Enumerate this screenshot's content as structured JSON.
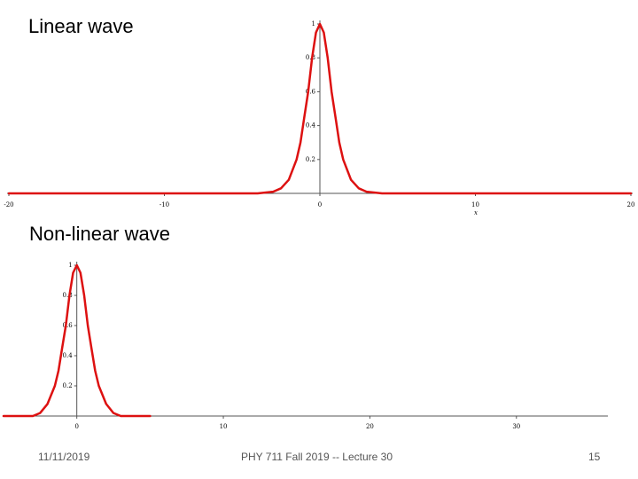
{
  "slide": {
    "footer": {
      "date": "11/11/2019",
      "course": "PHY 711 Fall 2019 -- Lecture 30",
      "page": "15"
    }
  },
  "chart_data": [
    {
      "type": "line",
      "title": "Linear wave",
      "xlabel": "x",
      "ylabel": "",
      "xlim": [
        -20,
        20
      ],
      "ylim": [
        0,
        1
      ],
      "x_ticks": [
        "-20",
        "-10",
        "0",
        "10",
        "20"
      ],
      "y_ticks": [
        "0.2",
        "0.4",
        "0.6",
        "0.8",
        "1"
      ],
      "grid": false,
      "legend": "none",
      "series_color": "#dd1111",
      "series": [
        {
          "name": "",
          "x": [
            -20,
            -4,
            -3,
            -2.5,
            -2,
            -1.5,
            -1.25,
            -1,
            -0.75,
            -0.5,
            -0.25,
            0,
            0.25,
            0.5,
            0.75,
            1,
            1.25,
            1.5,
            2,
            2.5,
            3,
            4,
            20
          ],
          "y": [
            0,
            0,
            0.01,
            0.03,
            0.08,
            0.2,
            0.3,
            0.45,
            0.6,
            0.8,
            0.95,
            1,
            0.95,
            0.8,
            0.6,
            0.45,
            0.3,
            0.2,
            0.08,
            0.03,
            0.01,
            0,
            0
          ]
        }
      ]
    },
    {
      "type": "line",
      "title": "Non-linear wave",
      "xlabel": "",
      "ylabel": "",
      "xlim": [
        -5,
        36
      ],
      "ylim": [
        0,
        1
      ],
      "x_ticks": [
        "0",
        "10",
        "20",
        "30"
      ],
      "y_ticks": [
        "0.2",
        "0.4",
        "0.6",
        "0.8",
        "1"
      ],
      "grid": false,
      "legend": "none",
      "series_color": "#dd1111",
      "series": [
        {
          "name": "",
          "x": [
            -5,
            -3,
            -2.5,
            -2,
            -1.5,
            -1.25,
            -1,
            -0.75,
            -0.5,
            -0.25,
            0,
            0.25,
            0.5,
            0.75,
            1,
            1.25,
            1.5,
            2,
            2.5,
            3,
            5
          ],
          "y": [
            0,
            0,
            0.02,
            0.08,
            0.2,
            0.3,
            0.45,
            0.6,
            0.8,
            0.95,
            1,
            0.95,
            0.8,
            0.6,
            0.45,
            0.3,
            0.2,
            0.08,
            0.02,
            0,
            0
          ]
        }
      ]
    }
  ]
}
